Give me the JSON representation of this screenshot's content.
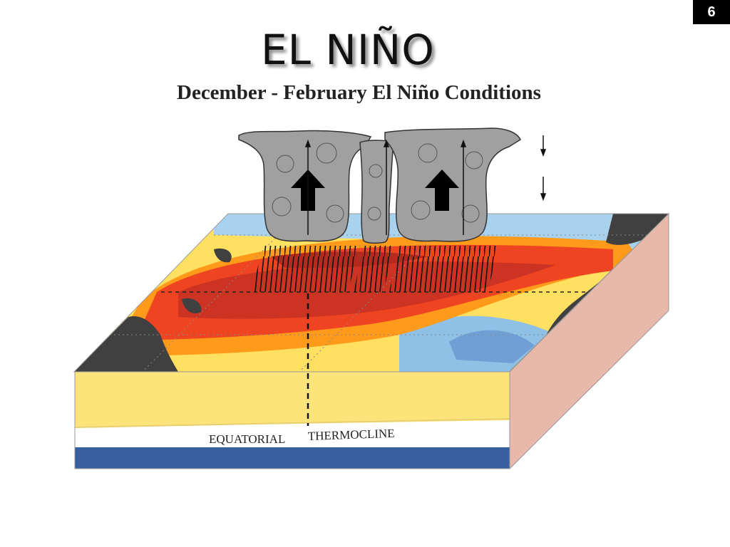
{
  "slide": {
    "number": "6"
  },
  "title": "EL NIÑO",
  "subtitle": "December - February El Niño Conditions",
  "labels": {
    "left": "EQUATORIAL",
    "right": "THERMOCLINE"
  },
  "colors": {
    "warm_core": "#cc3322",
    "warm": "#ee4422",
    "warm_orange": "#ff8800",
    "yellow": "#ffdd33",
    "cool": "#66aadd",
    "cold": "#4466aa",
    "land": "#404040",
    "cloud": "#a0a0a0",
    "side_face": "#e8b8aa",
    "front_warm_layer": "#fde47a",
    "front_cold_layer": "#3a5fa0"
  }
}
